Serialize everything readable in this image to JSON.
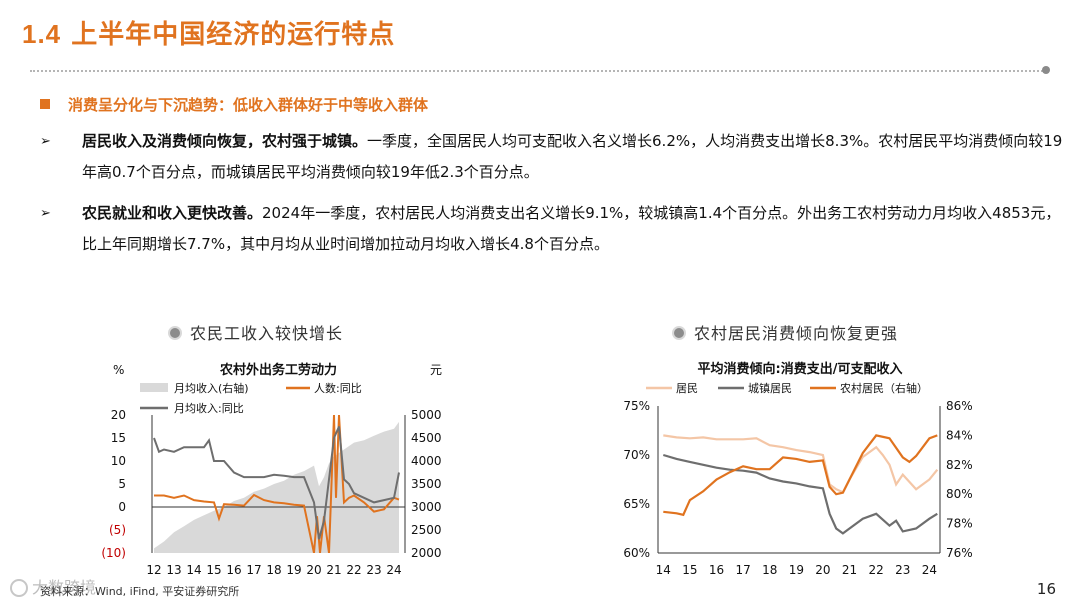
{
  "header": {
    "number": "1.4",
    "title": "上半年中国经济的运行特点"
  },
  "subheading": "消费呈分化与下沉趋势：低收入群体好于中等收入群体",
  "bullets": [
    {
      "bold": "居民收入及消费倾向恢复，农村强于城镇。",
      "text": "一季度，全国居民人均可支配收入名义增长6.2%，人均消费支出增长8.3%。农村居民平均消费倾向较19年高0.7个百分点，而城镇居民平均消费倾向较19年低2.3个百分点。"
    },
    {
      "bold": "农民就业和收入更快改善。",
      "text": "2024年一季度，农村居民人均消费支出名义增长9.1%，较城镇高1.4个百分点。外出务工农村劳动力月均收入4853元，比上年同期增长7.7%，其中月均从业时间增加拉动月均收入增长4.8个百分点。"
    }
  ],
  "panels": [
    {
      "title": "农民工收入较快增长"
    },
    {
      "title": "农村居民消费倾向恢复更强"
    }
  ],
  "footer": {
    "source": "资料来源：Wind, iFind, 平安证券研究所",
    "page": "16",
    "watermark": "大数跨境"
  },
  "colors": {
    "accent": "#e0731f",
    "gray": "#6e6e6e",
    "light_orange": "#f4c6a6",
    "area": "#d9d9d9"
  },
  "chart_data": [
    {
      "type": "line",
      "title": "农村外出务工劳动力",
      "y_left_unit": "%",
      "y_right_unit": "元",
      "ylim_left": [
        -10,
        20
      ],
      "ylim_right": [
        2000,
        5000
      ],
      "yticks_left": [
        "20",
        "15",
        "10",
        "5",
        "0",
        "(5)",
        "(10)"
      ],
      "yticks_right": [
        "5000",
        "4500",
        "4000",
        "3500",
        "3000",
        "2500",
        "2000"
      ],
      "xticks": [
        "12",
        "13",
        "14",
        "15",
        "16",
        "17",
        "18",
        "19",
        "20",
        "21",
        "22",
        "23",
        "24"
      ],
      "legend": [
        "月均收入(右轴)",
        "人数:同比",
        "月均收入:同比"
      ],
      "series": [
        {
          "name": "月均收入(右轴)",
          "kind": "area",
          "axis": "right",
          "x": [
            2012.0,
            2012.5,
            2013.0,
            2013.5,
            2014.0,
            2014.5,
            2015.0,
            2015.5,
            2016.0,
            2016.5,
            2017.0,
            2017.5,
            2018.0,
            2018.5,
            2019.0,
            2019.5,
            2020.0,
            2020.25,
            2020.5,
            2020.75,
            2021.0,
            2021.5,
            2022.0,
            2022.5,
            2023.0,
            2023.5,
            2024.0,
            2024.25
          ],
          "values": [
            2100,
            2250,
            2450,
            2580,
            2720,
            2820,
            2920,
            3000,
            3130,
            3200,
            3330,
            3400,
            3500,
            3570,
            3700,
            3780,
            3900,
            3450,
            3650,
            3950,
            4100,
            4250,
            4400,
            4450,
            4550,
            4640,
            4700,
            4850
          ]
        },
        {
          "name": "人数:同比",
          "kind": "line",
          "axis": "left",
          "x": [
            2012.0,
            2012.5,
            2013.0,
            2013.5,
            2014.0,
            2014.5,
            2015.0,
            2015.25,
            2015.5,
            2016.0,
            2016.5,
            2017.0,
            2017.5,
            2018.0,
            2018.5,
            2019.0,
            2019.5,
            2020.0,
            2020.15,
            2020.3,
            2020.5,
            2020.75,
            2021.0,
            2021.1,
            2021.25,
            2021.5,
            2021.75,
            2022.0,
            2022.5,
            2023.0,
            2023.5,
            2024.0,
            2024.25
          ],
          "values": [
            2.5,
            2.5,
            2.0,
            2.5,
            1.5,
            1.2,
            1.0,
            -2.5,
            0.6,
            0.5,
            0.3,
            2.6,
            1.5,
            1.0,
            0.8,
            0.5,
            0.3,
            -10.0,
            -2.0,
            -10.0,
            -2.0,
            -10.0,
            20.0,
            2.0,
            20.0,
            1.0,
            2.0,
            2.5,
            1.0,
            -1.0,
            -0.5,
            2.0,
            1.6
          ]
        },
        {
          "name": "月均收入:同比",
          "kind": "line",
          "axis": "left",
          "x": [
            2012.0,
            2012.25,
            2012.5,
            2013.0,
            2013.5,
            2014.0,
            2014.5,
            2014.75,
            2015.0,
            2015.5,
            2016.0,
            2016.5,
            2017.0,
            2017.5,
            2018.0,
            2018.5,
            2019.0,
            2019.5,
            2020.0,
            2020.25,
            2020.5,
            2020.75,
            2021.0,
            2021.25,
            2021.5,
            2021.75,
            2022.0,
            2022.5,
            2023.0,
            2023.5,
            2024.0,
            2024.25
          ],
          "values": [
            15.0,
            12.0,
            12.5,
            12.0,
            13.0,
            13.0,
            13.0,
            14.5,
            10.0,
            10.0,
            7.5,
            6.5,
            6.5,
            6.5,
            7.0,
            6.8,
            6.5,
            6.5,
            1.0,
            -7.0,
            -3.0,
            6.0,
            15.0,
            17.5,
            6.0,
            5.0,
            3.0,
            2.0,
            1.0,
            1.5,
            2.0,
            7.5
          ]
        }
      ]
    },
    {
      "type": "line",
      "title": "平均消费倾向:消费支出/可支配收入",
      "ylim_left": [
        60,
        75
      ],
      "ylim_right": [
        76,
        86
      ],
      "yticks_left": [
        "75%",
        "70%",
        "65%",
        "60%"
      ],
      "yticks_right": [
        "86%",
        "84%",
        "82%",
        "80%",
        "78%",
        "76%"
      ],
      "xticks": [
        "14",
        "15",
        "16",
        "17",
        "18",
        "19",
        "20",
        "21",
        "22",
        "23",
        "24"
      ],
      "legend": [
        "居民",
        "城镇居民",
        "农村居民（右轴）"
      ],
      "series": [
        {
          "name": "居民",
          "axis": "left",
          "x": [
            2014.0,
            2014.5,
            2015.0,
            2015.5,
            2016.0,
            2016.5,
            2017.0,
            2017.5,
            2018.0,
            2018.5,
            2019.0,
            2019.5,
            2020.0,
            2020.25,
            2020.5,
            2020.75,
            2021.0,
            2021.5,
            2022.0,
            2022.25,
            2022.5,
            2022.75,
            2023.0,
            2023.5,
            2024.0,
            2024.3
          ],
          "values": [
            72.0,
            71.8,
            71.7,
            71.8,
            71.6,
            71.6,
            71.6,
            71.7,
            71.0,
            70.8,
            70.5,
            70.3,
            70.0,
            67.0,
            66.5,
            66.2,
            67.5,
            69.8,
            70.8,
            70.0,
            69.0,
            67.0,
            68.0,
            66.5,
            67.5,
            68.5
          ]
        },
        {
          "name": "城镇居民",
          "axis": "left",
          "x": [
            2014.0,
            2014.5,
            2015.0,
            2015.5,
            2016.0,
            2016.5,
            2017.0,
            2017.5,
            2018.0,
            2018.5,
            2019.0,
            2019.5,
            2020.0,
            2020.25,
            2020.5,
            2020.75,
            2021.0,
            2021.5,
            2022.0,
            2022.5,
            2022.75,
            2023.0,
            2023.5,
            2024.0,
            2024.3
          ],
          "values": [
            70.0,
            69.6,
            69.3,
            69.0,
            68.7,
            68.5,
            68.4,
            68.2,
            67.6,
            67.3,
            67.1,
            66.8,
            66.6,
            64.0,
            62.5,
            62.0,
            62.5,
            63.5,
            64.0,
            62.8,
            63.3,
            62.2,
            62.5,
            63.5,
            64.0
          ]
        },
        {
          "name": "农村居民（右轴）",
          "axis": "right",
          "x": [
            2014.0,
            2014.5,
            2014.75,
            2015.0,
            2015.5,
            2016.0,
            2016.5,
            2017.0,
            2017.5,
            2018.0,
            2018.5,
            2019.0,
            2019.5,
            2020.0,
            2020.25,
            2020.5,
            2020.75,
            2021.0,
            2021.5,
            2022.0,
            2022.5,
            2023.0,
            2023.25,
            2023.5,
            2024.0,
            2024.3
          ],
          "values": [
            78.8,
            78.7,
            78.6,
            79.6,
            80.2,
            81.0,
            81.5,
            81.9,
            81.7,
            81.7,
            82.5,
            82.4,
            82.2,
            82.3,
            80.5,
            80.0,
            80.1,
            81.0,
            82.8,
            84.0,
            83.8,
            82.5,
            82.2,
            82.6,
            83.8,
            84.0
          ]
        }
      ]
    }
  ]
}
